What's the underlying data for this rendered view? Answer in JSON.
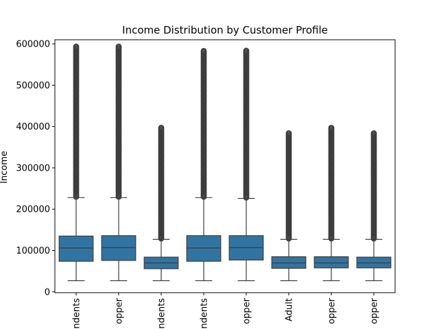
{
  "chart_data": {
    "type": "box",
    "title": "Income Distribution by Customer Profile",
    "xlabel": "",
    "ylabel": "Income",
    "ylim": [
      -2000,
      610000
    ],
    "yticks": [
      0,
      100000,
      200000,
      300000,
      400000,
      500000,
      600000
    ],
    "ytick_labels": [
      "0",
      "100000",
      "200000",
      "300000",
      "400000",
      "500000",
      "600000"
    ],
    "grid": false,
    "colors": {
      "box_fill": "#3274a1",
      "line": "#3d3d3d",
      "outlier": "#3d3d3d"
    },
    "categories": [
      "ndents",
      "opper",
      "ndents",
      "ndents",
      "opper",
      "Adult",
      "opper",
      "opper"
    ],
    "boxes": [
      {
        "whisker_low": 27000,
        "q1": 74000,
        "median": 106000,
        "q3": 135000,
        "whisker_high": 228000,
        "outlier_range": [
          230000,
          595000
        ]
      },
      {
        "whisker_low": 27000,
        "q1": 76000,
        "median": 107000,
        "q3": 136000,
        "whisker_high": 228000,
        "outlier_range": [
          230000,
          595000
        ]
      },
      {
        "whisker_low": 27000,
        "q1": 56000,
        "median": 70000,
        "q3": 84000,
        "whisker_high": 127000,
        "outlier_range": [
          129000,
          398000
        ]
      },
      {
        "whisker_low": 27000,
        "q1": 74000,
        "median": 106000,
        "q3": 136000,
        "whisker_high": 228000,
        "outlier_range": [
          230000,
          585000
        ]
      },
      {
        "whisker_low": 27000,
        "q1": 77000,
        "median": 107000,
        "q3": 136000,
        "whisker_high": 226000,
        "outlier_range": [
          228000,
          585000
        ]
      },
      {
        "whisker_low": 27000,
        "q1": 57000,
        "median": 70000,
        "q3": 85000,
        "whisker_high": 127000,
        "outlier_range": [
          129000,
          385000
        ]
      },
      {
        "whisker_low": 27000,
        "q1": 58000,
        "median": 70000,
        "q3": 85000,
        "whisker_high": 127000,
        "outlier_range": [
          129000,
          397000
        ]
      },
      {
        "whisker_low": 27000,
        "q1": 58000,
        "median": 70000,
        "q3": 84000,
        "whisker_high": 127000,
        "outlier_range": [
          129000,
          385000
        ]
      }
    ]
  }
}
